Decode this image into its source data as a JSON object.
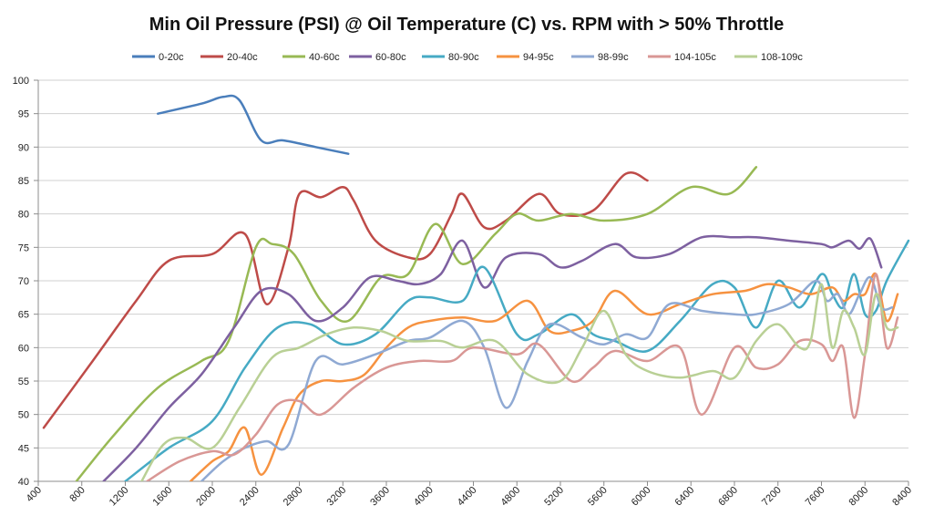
{
  "chart_data": {
    "type": "line",
    "title": "Min Oil Pressure (PSI) @ Oil Temperature (C) vs. RPM with > 50% Throttle",
    "xlabel": "",
    "ylabel": "",
    "xlim": [
      400,
      8400
    ],
    "ylim": [
      40,
      100
    ],
    "x_ticks": [
      400,
      800,
      1200,
      1600,
      2000,
      2400,
      2800,
      3200,
      3600,
      4000,
      4400,
      4800,
      5200,
      5600,
      6000,
      6400,
      6800,
      7200,
      7600,
      8000,
      8400
    ],
    "y_ticks": [
      40,
      45,
      50,
      55,
      60,
      65,
      70,
      75,
      80,
      85,
      90,
      95,
      100
    ],
    "x_tick_labels": [
      "400",
      "800",
      "1200",
      "1600",
      "2000",
      "2400",
      "2800",
      "3200",
      "3600",
      "4000",
      "4400",
      "4800",
      "5200",
      "5600",
      "6000",
      "6400",
      "6800",
      "7200",
      "7600",
      "8000",
      "8400"
    ],
    "y_tick_labels": [
      "40",
      "45",
      "50",
      "55",
      "60",
      "65",
      "70",
      "75",
      "80",
      "85",
      "90",
      "95",
      "100"
    ],
    "grid": "horizontal",
    "legend_position": "top",
    "series": [
      {
        "name": "0-20c",
        "color": "#4a7ebb",
        "x": [
          1500,
          1900,
          2100,
          2250,
          2450,
          2650,
          2950,
          3250
        ],
        "y": [
          95,
          96.5,
          97.5,
          97,
          91,
          91,
          90,
          89
        ]
      },
      {
        "name": "20-40c",
        "color": "#be4b48",
        "x": [
          450,
          900,
          1300,
          1600,
          2000,
          2300,
          2500,
          2700,
          2800,
          3000,
          3200,
          3300,
          3500,
          3800,
          4000,
          4200,
          4300,
          4500,
          4700,
          5000,
          5200,
          5500,
          5800,
          6000
        ],
        "y": [
          48,
          58,
          67,
          73,
          74,
          77,
          66.5,
          75,
          83,
          82.5,
          84,
          82,
          76,
          73.5,
          74,
          80,
          83,
          78,
          79,
          83,
          80,
          80.5,
          86,
          85
        ]
      },
      {
        "name": "40-60c",
        "color": "#98b954",
        "x": [
          750,
          1100,
          1500,
          1900,
          2150,
          2400,
          2550,
          2750,
          3000,
          3250,
          3550,
          3800,
          4050,
          4300,
          4600,
          4800,
          5000,
          5300,
          5600,
          6000,
          6400,
          6750,
          7000
        ],
        "y": [
          40,
          47,
          54,
          58,
          61,
          75,
          75.5,
          74,
          67,
          64,
          70.5,
          71,
          78.5,
          72.5,
          77,
          80,
          79,
          80,
          79,
          80,
          84,
          83,
          87
        ]
      },
      {
        "name": "60-80c",
        "color": "#7d60a0",
        "x": [
          1000,
          1300,
          1600,
          1900,
          2200,
          2450,
          2700,
          2950,
          3200,
          3450,
          3700,
          3900,
          4100,
          4300,
          4500,
          4700,
          5000,
          5200,
          5400,
          5700,
          5900,
          6200,
          6500,
          6800,
          7000,
          7300,
          7600,
          7700,
          7850,
          7950,
          8050,
          8150
        ],
        "y": [
          40,
          45,
          51,
          56,
          63,
          68.5,
          68,
          64,
          66,
          70.5,
          70,
          69.5,
          71,
          76,
          69,
          73.5,
          74,
          72,
          73,
          75.5,
          73.5,
          74,
          76.5,
          76.5,
          76.5,
          76,
          75.5,
          75,
          76,
          74.8,
          76.3,
          72
        ]
      },
      {
        "name": "80-90c",
        "color": "#46aac4",
        "x": [
          1200,
          1600,
          2000,
          2300,
          2600,
          2900,
          3200,
          3500,
          3800,
          4000,
          4300,
          4500,
          4800,
          5000,
          5300,
          5500,
          5700,
          6000,
          6300,
          6600,
          6800,
          7000,
          7200,
          7400,
          7600,
          7700,
          7800,
          7900,
          8000,
          8100,
          8200,
          8400
        ],
        "y": [
          40,
          45,
          49,
          57,
          63,
          63.5,
          60.5,
          62,
          67,
          67.5,
          67,
          72,
          62,
          62,
          65,
          62,
          61,
          59.5,
          64,
          69.5,
          69,
          63,
          70,
          66,
          71,
          68,
          66,
          71,
          65,
          65.5,
          70,
          76
        ]
      },
      {
        "name": "94-95c",
        "color": "#f69240",
        "x": [
          1800,
          2000,
          2150,
          2300,
          2450,
          2650,
          2800,
          3000,
          3200,
          3400,
          3600,
          3800,
          4000,
          4300,
          4600,
          4900,
          5100,
          5300,
          5500,
          5700,
          6000,
          6300,
          6600,
          6900,
          7100,
          7300,
          7500,
          7700,
          7800,
          7900,
          8000,
          8100,
          8200,
          8300
        ],
        "y": [
          40,
          43,
          44.5,
          48,
          41,
          48,
          53,
          55,
          55,
          56,
          60,
          63,
          64,
          64.5,
          64,
          67,
          62.5,
          62.5,
          64,
          68.5,
          65,
          66.5,
          68,
          68.5,
          69.5,
          69,
          68,
          69,
          67,
          68,
          68,
          71,
          64,
          68
        ]
      },
      {
        "name": "98-99c",
        "color": "#8fa9d3",
        "x": [
          1900,
          2100,
          2300,
          2500,
          2700,
          2950,
          3200,
          3500,
          3800,
          4000,
          4300,
          4500,
          4700,
          4900,
          5100,
          5400,
          5600,
          5800,
          6000,
          6200,
          6500,
          6800,
          7000,
          7300,
          7550,
          7650,
          7750,
          7850,
          7950,
          8050,
          8150,
          8250
        ],
        "y": [
          40,
          43,
          45,
          46,
          45.5,
          58,
          57.5,
          59,
          61,
          61.5,
          64,
          60,
          51,
          58,
          63.5,
          61.5,
          60.5,
          62,
          61.5,
          66.5,
          65.5,
          65,
          65,
          66.5,
          70,
          67,
          68,
          65,
          68,
          70.5,
          66,
          66
        ]
      },
      {
        "name": "104-105c",
        "color": "#d99795",
        "x": [
          1400,
          1700,
          2000,
          2200,
          2400,
          2600,
          2800,
          3000,
          3300,
          3600,
          3900,
          4200,
          4400,
          4800,
          5000,
          5300,
          5500,
          5700,
          6000,
          6300,
          6500,
          6800,
          7000,
          7200,
          7400,
          7600,
          7700,
          7800,
          7900,
          8000,
          8100,
          8200,
          8300
        ],
        "y": [
          40,
          43,
          44.5,
          44,
          47,
          51.5,
          52,
          50,
          54,
          57,
          58,
          58,
          60,
          59,
          60.5,
          55,
          57,
          59.5,
          58,
          60,
          50,
          60,
          57,
          57.5,
          61,
          60.5,
          58,
          60,
          49.5,
          59,
          71,
          60,
          64.5
        ]
      },
      {
        "name": "108-109c",
        "color": "#b9d095",
        "x": [
          1350,
          1550,
          1750,
          2000,
          2250,
          2550,
          2800,
          3050,
          3300,
          3550,
          3800,
          4100,
          4300,
          4600,
          4900,
          5200,
          5400,
          5600,
          5800,
          6000,
          6300,
          6600,
          6800,
          7000,
          7200,
          7400,
          7500,
          7600,
          7700,
          7800,
          7900,
          8000,
          8100,
          8200,
          8300
        ],
        "y": [
          40,
          45.5,
          46.5,
          45,
          51,
          58.5,
          60,
          62,
          63,
          62.5,
          61,
          61,
          60,
          61,
          56,
          55,
          60,
          65.5,
          59,
          56.5,
          55.5,
          56.5,
          55.5,
          61,
          63.5,
          60,
          61,
          69.5,
          60,
          65.5,
          63,
          59,
          68,
          63,
          63
        ]
      }
    ]
  }
}
